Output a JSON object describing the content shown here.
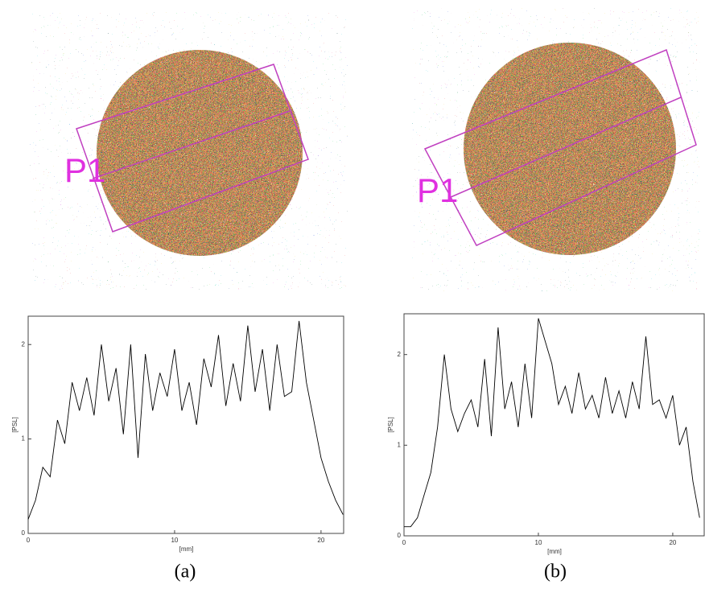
{
  "chart_data": [
    {
      "type": "line",
      "annotation": "P1",
      "caption": "(a)",
      "xlabel": "[mm]",
      "ylabel": "[PSL]",
      "x": [
        0,
        0.5,
        1,
        1.5,
        2,
        2.5,
        3,
        3.5,
        4,
        4.5,
        5,
        5.5,
        6,
        6.5,
        7,
        7.5,
        8,
        8.5,
        9,
        9.5,
        10,
        10.5,
        11,
        11.5,
        12,
        12.5,
        13,
        13.5,
        14,
        14.5,
        15,
        15.5,
        16,
        16.5,
        17,
        17.5,
        18,
        18.5,
        19,
        19.5,
        20,
        20.5,
        21,
        21.5
      ],
      "values": [
        0.15,
        0.35,
        0.7,
        0.6,
        1.2,
        0.95,
        1.6,
        1.3,
        1.65,
        1.25,
        2.0,
        1.4,
        1.75,
        1.05,
        2.0,
        0.8,
        1.9,
        1.3,
        1.7,
        1.45,
        1.95,
        1.3,
        1.6,
        1.15,
        1.85,
        1.55,
        2.1,
        1.35,
        1.8,
        1.4,
        2.2,
        1.5,
        1.95,
        1.3,
        2.0,
        1.45,
        1.5,
        2.25,
        1.6,
        1.2,
        0.8,
        0.55,
        0.35,
        0.2
      ],
      "color": "#000000",
      "xlim": [
        0,
        21.6
      ],
      "ylim": [
        0,
        2.3
      ],
      "xticks": [
        0,
        10,
        20
      ],
      "yticks": [
        0,
        1,
        2
      ]
    },
    {
      "type": "line",
      "annotation": "P1",
      "caption": "(b)",
      "xlabel": "[mm]",
      "ylabel": "[PSL]",
      "x": [
        0,
        0.5,
        1,
        1.5,
        2,
        2.5,
        3,
        3.5,
        4,
        4.5,
        5,
        5.5,
        6,
        6.5,
        7,
        7.5,
        8,
        8.5,
        9,
        9.5,
        10,
        10.5,
        11,
        11.5,
        12,
        12.5,
        13,
        13.5,
        14,
        14.5,
        15,
        15.5,
        16,
        16.5,
        17,
        17.5,
        18,
        18.5,
        19,
        19.5,
        20,
        20.5,
        21,
        21.5,
        22
      ],
      "values": [
        0.1,
        0.1,
        0.2,
        0.45,
        0.7,
        1.2,
        2.0,
        1.4,
        1.15,
        1.35,
        1.5,
        1.2,
        1.95,
        1.1,
        2.3,
        1.4,
        1.7,
        1.2,
        1.9,
        1.3,
        2.4,
        2.15,
        1.9,
        1.45,
        1.65,
        1.35,
        1.8,
        1.4,
        1.55,
        1.3,
        1.75,
        1.35,
        1.6,
        1.3,
        1.7,
        1.4,
        2.2,
        1.45,
        1.5,
        1.3,
        1.55,
        1.0,
        1.2,
        0.6,
        0.2
      ],
      "color": "#000000",
      "xlim": [
        0,
        22.4
      ],
      "ylim": [
        0,
        2.45
      ],
      "xticks": [
        0,
        10,
        20
      ],
      "yticks": [
        0,
        1,
        2
      ]
    }
  ]
}
